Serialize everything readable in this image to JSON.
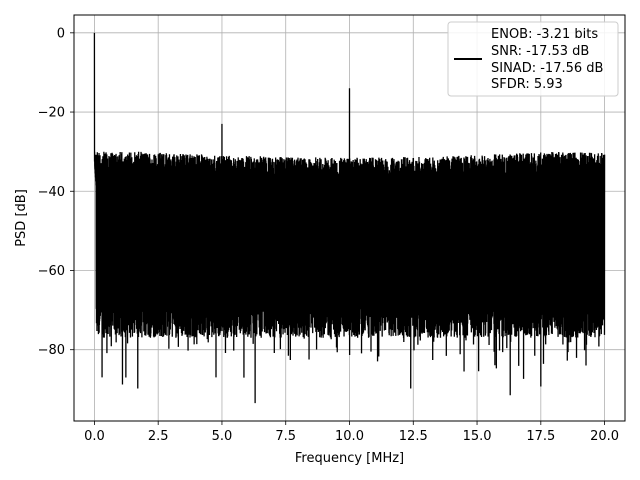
{
  "chart_data": {
    "type": "line",
    "title": "",
    "xlabel": "Frequency [MHz]",
    "ylabel": "PSD [dB]",
    "xlim": [
      -0.8,
      20.8
    ],
    "ylim": [
      -98,
      4.5
    ],
    "x_ticks": [
      0.0,
      2.5,
      5.0,
      7.5,
      10.0,
      12.5,
      15.0,
      17.5,
      20.0
    ],
    "x_tick_labels": [
      "0.0",
      "2.5",
      "5.0",
      "7.5",
      "10.0",
      "12.5",
      "15.0",
      "17.5",
      "20.0"
    ],
    "y_ticks": [
      0,
      -20,
      -40,
      -60,
      -80
    ],
    "y_tick_labels": [
      "0",
      "−20",
      "−40",
      "−60",
      "−80"
    ],
    "grid": true,
    "legend_position": "top-right",
    "series": [
      {
        "name": "ENOB: -3.21 bits\nSNR: -17.53 dB\nSINAD: -17.56 dB\nSFDR: 5.93",
        "legend_lines": [
          "ENOB: -3.21 bits",
          "SNR: -17.53 dB",
          "SINAD: -17.56 dB",
          "SFDR: 5.93"
        ],
        "color": "#000000",
        "x_range": [
          0.0,
          20.0
        ],
        "noise_floor_upper": -33,
        "noise_floor_lower": -72,
        "peaks": [
          {
            "x": 0.0,
            "y": 0.0
          },
          {
            "x": 5.0,
            "y": -23.0
          },
          {
            "x": 10.0,
            "y": -14.0
          }
        ],
        "deep_dips": [
          {
            "x": 6.3,
            "y": -93.5
          },
          {
            "x": 16.3,
            "y": -91.5
          },
          {
            "x": 12.4,
            "y": -89.8
          },
          {
            "x": 17.5,
            "y": -89.3
          },
          {
            "x": 1.7,
            "y": -89.8
          },
          {
            "x": 1.1,
            "y": -88.8
          },
          {
            "x": 0.3,
            "y": -87.0
          }
        ]
      }
    ]
  }
}
